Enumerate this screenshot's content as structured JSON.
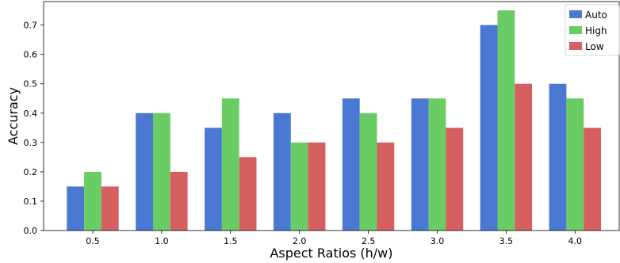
{
  "chart_data": {
    "type": "bar",
    "categories": [
      "0.5",
      "1.0",
      "1.5",
      "2.0",
      "2.5",
      "3.0",
      "3.5",
      "4.0"
    ],
    "series": [
      {
        "name": "Auto",
        "color": "#4a78d3",
        "values": [
          0.15,
          0.4,
          0.35,
          0.4,
          0.45,
          0.45,
          0.7,
          0.5
        ]
      },
      {
        "name": "High",
        "color": "#6acc64",
        "values": [
          0.2,
          0.4,
          0.45,
          0.3,
          0.4,
          0.45,
          0.75,
          0.45
        ]
      },
      {
        "name": "Low",
        "color": "#d65f5f",
        "values": [
          0.15,
          0.2,
          0.25,
          0.3,
          0.3,
          0.35,
          0.5,
          0.35
        ]
      }
    ],
    "xlabel": "Aspect Ratios (h/w)",
    "ylabel": "Accuracy",
    "ylim": [
      0,
      0.78
    ],
    "yticks": [
      "0.0",
      "0.1",
      "0.2",
      "0.3",
      "0.4",
      "0.5",
      "0.6",
      "0.7"
    ],
    "grid": false,
    "legend_position": "top-right"
  }
}
